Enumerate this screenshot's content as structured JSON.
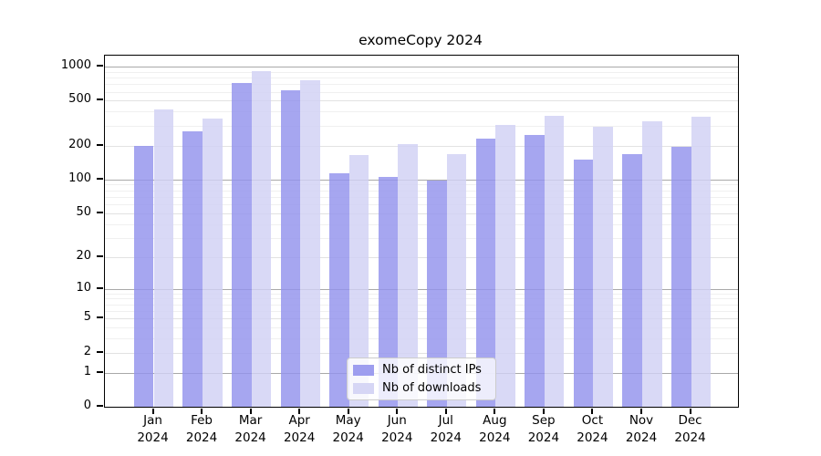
{
  "chart_data": {
    "type": "bar",
    "title": "exomeCopy 2024",
    "categories": [
      "Jan",
      "Feb",
      "Mar",
      "Apr",
      "May",
      "Jun",
      "Jul",
      "Aug",
      "Sep",
      "Oct",
      "Nov",
      "Dec"
    ],
    "category_year": "2024",
    "series": [
      {
        "name": "Nb of distinct IPs",
        "color": "#9393ed",
        "values": [
          199,
          268,
          721,
          620,
          114,
          105,
          98,
          231,
          249,
          150,
          169,
          196
        ]
      },
      {
        "name": "Nb of downloads",
        "color": "#d1d1f4",
        "values": [
          419,
          350,
          910,
          762,
          165,
          206,
          167,
          306,
          365,
          296,
          330,
          362
        ]
      }
    ],
    "xlabel": "",
    "ylabel": "",
    "yscale": "log10(1+value)",
    "ylim": [
      0,
      1000
    ],
    "yticks": [
      0,
      1,
      2,
      5,
      10,
      20,
      50,
      100,
      200,
      500,
      1000
    ],
    "yticks_minor": [
      3,
      4,
      6,
      7,
      8,
      9,
      30,
      40,
      60,
      70,
      80,
      90,
      300,
      400,
      600,
      700,
      800,
      900
    ],
    "grid": "horizontal",
    "legend_position": "lower center",
    "axis_color": "#000000",
    "grid_decade_color": "#a9a9a9",
    "grid_tick_color": "#e2e2e2",
    "grid_minor_color": "#f0f0f0"
  }
}
